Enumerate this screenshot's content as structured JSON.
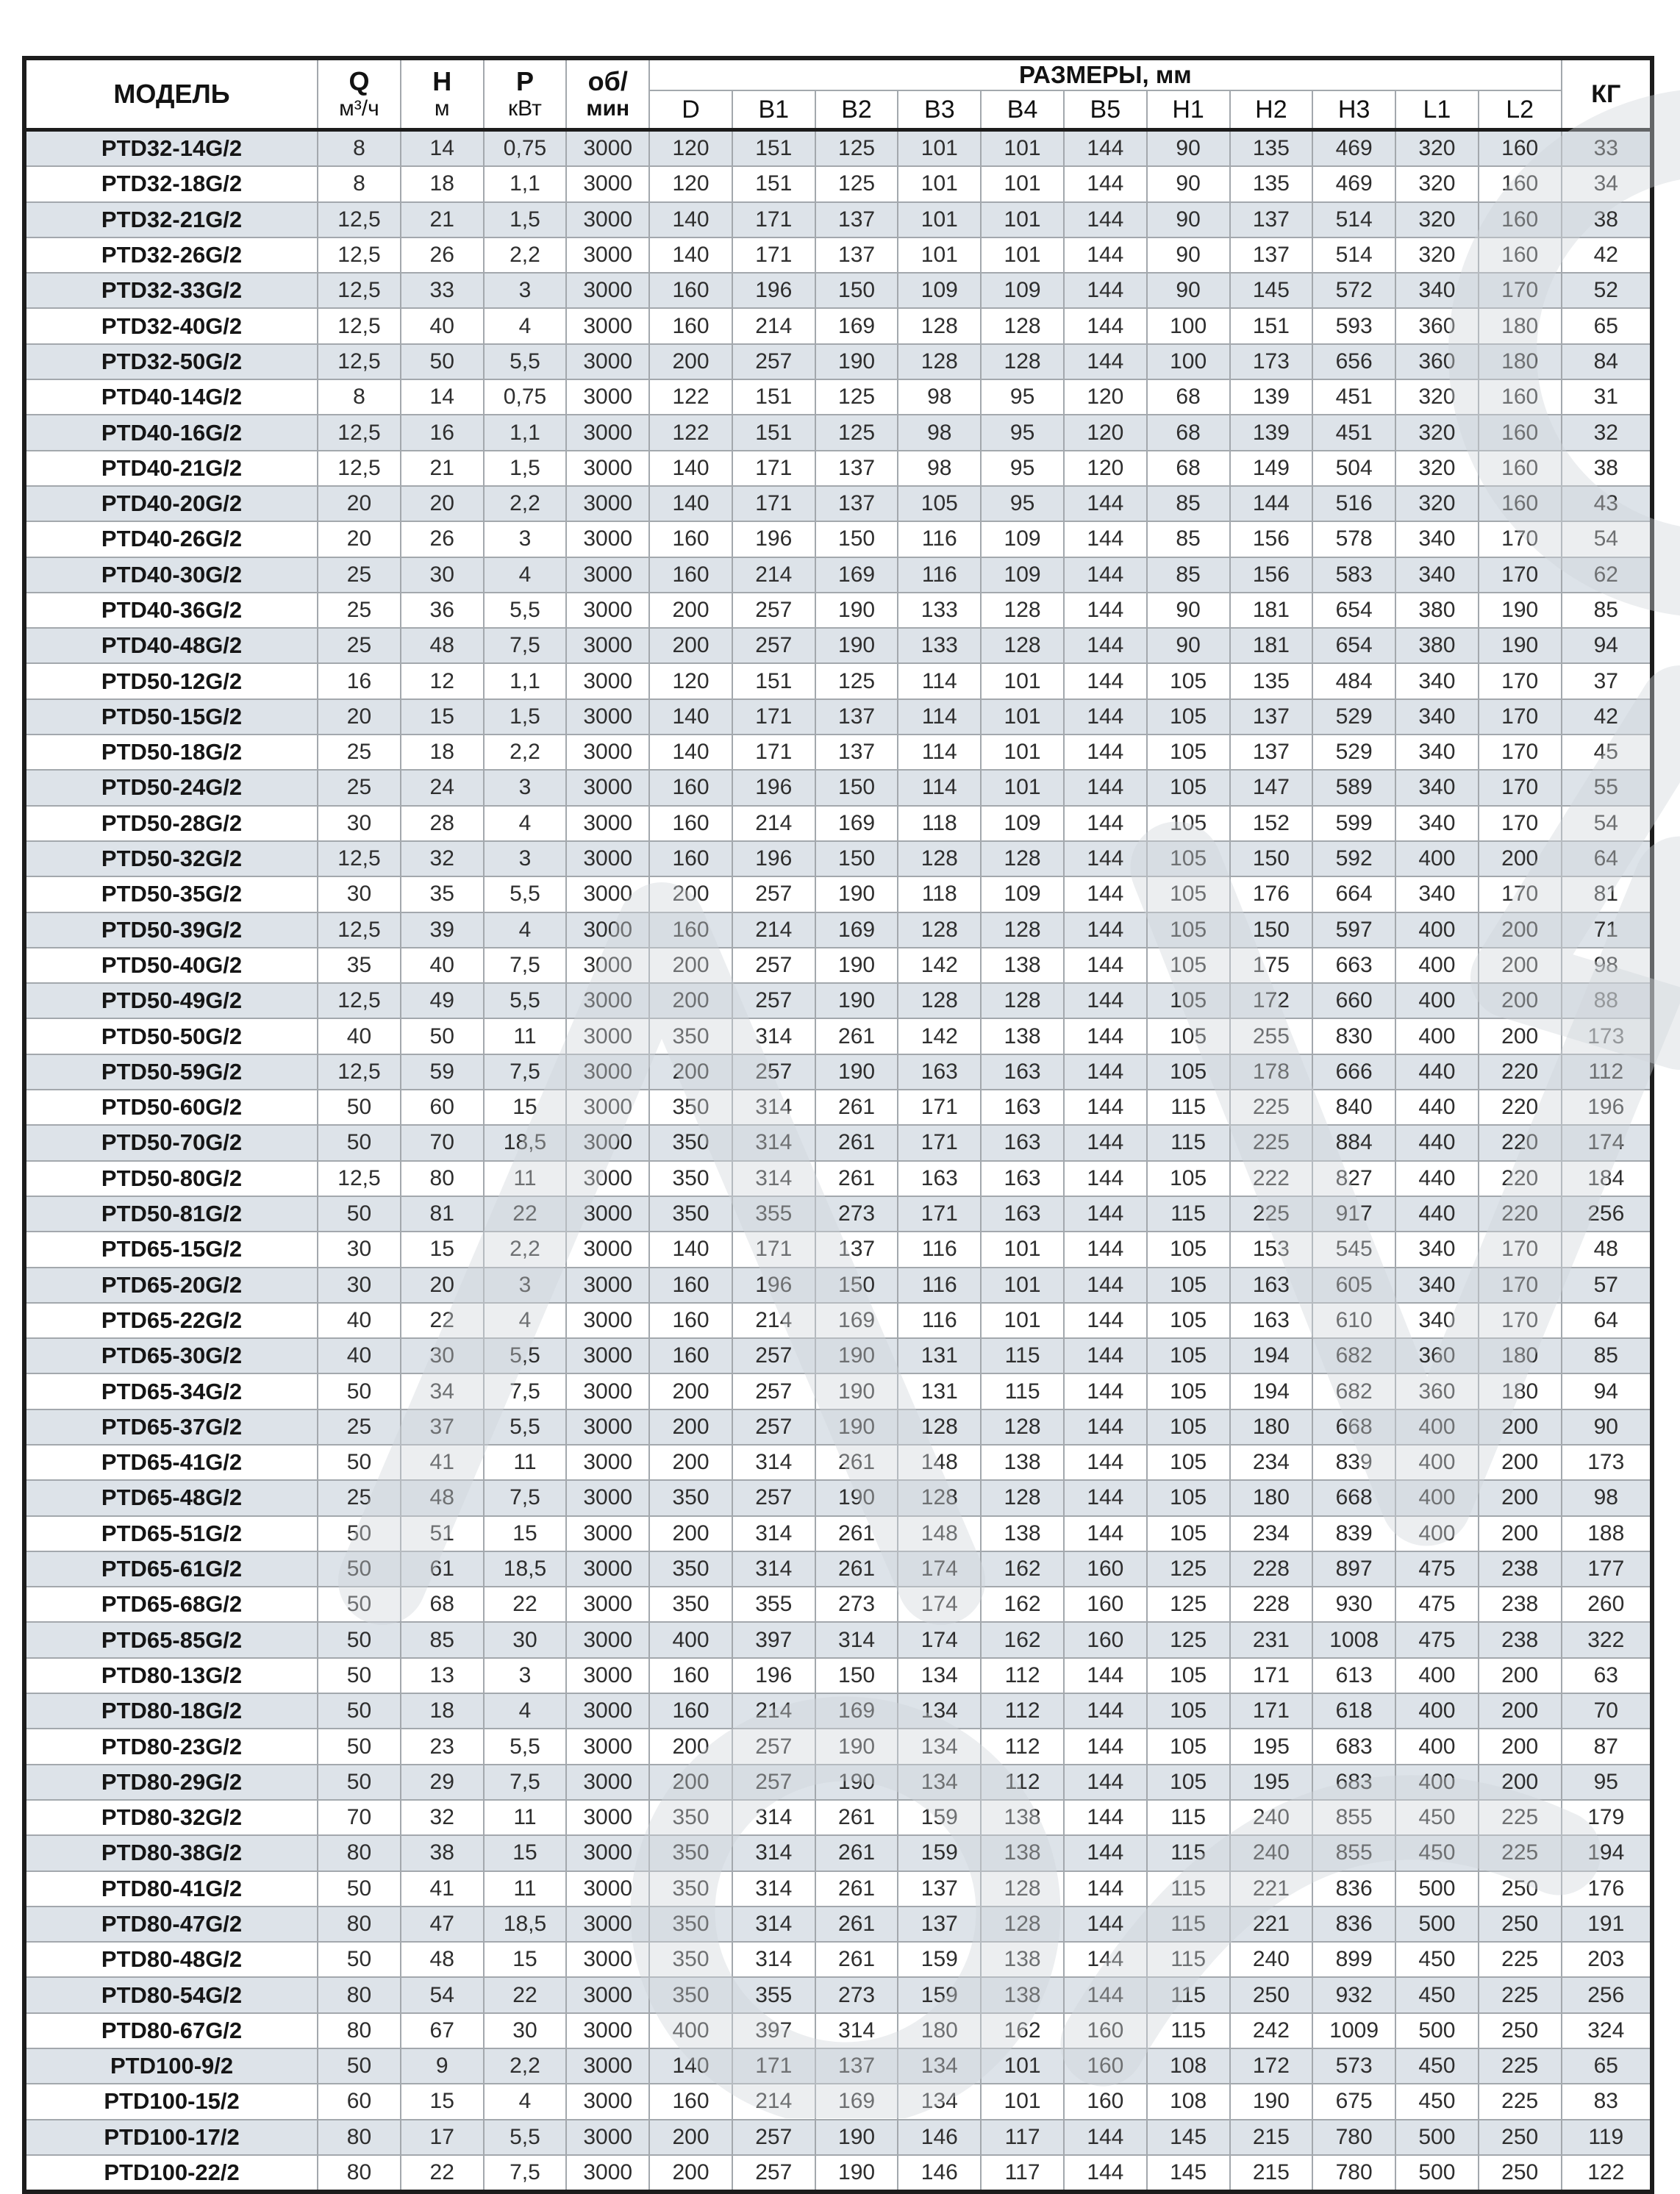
{
  "colors": {
    "row_shade": "#dde3e9",
    "grid_line": "#a3a8ad",
    "frame": "#1c1c1c",
    "watermark": "#cfd5d9"
  },
  "header": {
    "model": "МОДЕЛЬ",
    "q_label": "Q",
    "q_unit": "м³/ч",
    "h_label": "Н",
    "h_unit": "м",
    "p_label": "Р",
    "p_unit": "кВт",
    "rpm_line1": "об/",
    "rpm_line2": "мин",
    "dims_title": "РАЗМЕРЫ, мм",
    "dim_cols": [
      "D",
      "B1",
      "B2",
      "B3",
      "B4",
      "B5",
      "H1",
      "H2",
      "H3",
      "L1",
      "L2"
    ],
    "kg": "КГ"
  },
  "rows": [
    [
      "PTD32-14G/2",
      "8",
      "14",
      "0,75",
      "3000",
      "120",
      "151",
      "125",
      "101",
      "101",
      "144",
      "90",
      "135",
      "469",
      "320",
      "160",
      "33"
    ],
    [
      "PTD32-18G/2",
      "8",
      "18",
      "1,1",
      "3000",
      "120",
      "151",
      "125",
      "101",
      "101",
      "144",
      "90",
      "135",
      "469",
      "320",
      "160",
      "34"
    ],
    [
      "PTD32-21G/2",
      "12,5",
      "21",
      "1,5",
      "3000",
      "140",
      "171",
      "137",
      "101",
      "101",
      "144",
      "90",
      "137",
      "514",
      "320",
      "160",
      "38"
    ],
    [
      "PTD32-26G/2",
      "12,5",
      "26",
      "2,2",
      "3000",
      "140",
      "171",
      "137",
      "101",
      "101",
      "144",
      "90",
      "137",
      "514",
      "320",
      "160",
      "42"
    ],
    [
      "PTD32-33G/2",
      "12,5",
      "33",
      "3",
      "3000",
      "160",
      "196",
      "150",
      "109",
      "109",
      "144",
      "90",
      "145",
      "572",
      "340",
      "170",
      "52"
    ],
    [
      "PTD32-40G/2",
      "12,5",
      "40",
      "4",
      "3000",
      "160",
      "214",
      "169",
      "128",
      "128",
      "144",
      "100",
      "151",
      "593",
      "360",
      "180",
      "65"
    ],
    [
      "PTD32-50G/2",
      "12,5",
      "50",
      "5,5",
      "3000",
      "200",
      "257",
      "190",
      "128",
      "128",
      "144",
      "100",
      "173",
      "656",
      "360",
      "180",
      "84"
    ],
    [
      "PTD40-14G/2",
      "8",
      "14",
      "0,75",
      "3000",
      "122",
      "151",
      "125",
      "98",
      "95",
      "120",
      "68",
      "139",
      "451",
      "320",
      "160",
      "31"
    ],
    [
      "PTD40-16G/2",
      "12,5",
      "16",
      "1,1",
      "3000",
      "122",
      "151",
      "125",
      "98",
      "95",
      "120",
      "68",
      "139",
      "451",
      "320",
      "160",
      "32"
    ],
    [
      "PTD40-21G/2",
      "12,5",
      "21",
      "1,5",
      "3000",
      "140",
      "171",
      "137",
      "98",
      "95",
      "120",
      "68",
      "149",
      "504",
      "320",
      "160",
      "38"
    ],
    [
      "PTD40-20G/2",
      "20",
      "20",
      "2,2",
      "3000",
      "140",
      "171",
      "137",
      "105",
      "95",
      "144",
      "85",
      "144",
      "516",
      "320",
      "160",
      "43"
    ],
    [
      "PTD40-26G/2",
      "20",
      "26",
      "3",
      "3000",
      "160",
      "196",
      "150",
      "116",
      "109",
      "144",
      "85",
      "156",
      "578",
      "340",
      "170",
      "54"
    ],
    [
      "PTD40-30G/2",
      "25",
      "30",
      "4",
      "3000",
      "160",
      "214",
      "169",
      "116",
      "109",
      "144",
      "85",
      "156",
      "583",
      "340",
      "170",
      "62"
    ],
    [
      "PTD40-36G/2",
      "25",
      "36",
      "5,5",
      "3000",
      "200",
      "257",
      "190",
      "133",
      "128",
      "144",
      "90",
      "181",
      "654",
      "380",
      "190",
      "85"
    ],
    [
      "PTD40-48G/2",
      "25",
      "48",
      "7,5",
      "3000",
      "200",
      "257",
      "190",
      "133",
      "128",
      "144",
      "90",
      "181",
      "654",
      "380",
      "190",
      "94"
    ],
    [
      "PTD50-12G/2",
      "16",
      "12",
      "1,1",
      "3000",
      "120",
      "151",
      "125",
      "114",
      "101",
      "144",
      "105",
      "135",
      "484",
      "340",
      "170",
      "37"
    ],
    [
      "PTD50-15G/2",
      "20",
      "15",
      "1,5",
      "3000",
      "140",
      "171",
      "137",
      "114",
      "101",
      "144",
      "105",
      "137",
      "529",
      "340",
      "170",
      "42"
    ],
    [
      "PTD50-18G/2",
      "25",
      "18",
      "2,2",
      "3000",
      "140",
      "171",
      "137",
      "114",
      "101",
      "144",
      "105",
      "137",
      "529",
      "340",
      "170",
      "45"
    ],
    [
      "PTD50-24G/2",
      "25",
      "24",
      "3",
      "3000",
      "160",
      "196",
      "150",
      "114",
      "101",
      "144",
      "105",
      "147",
      "589",
      "340",
      "170",
      "55"
    ],
    [
      "PTD50-28G/2",
      "30",
      "28",
      "4",
      "3000",
      "160",
      "214",
      "169",
      "118",
      "109",
      "144",
      "105",
      "152",
      "599",
      "340",
      "170",
      "54"
    ],
    [
      "PTD50-32G/2",
      "12,5",
      "32",
      "3",
      "3000",
      "160",
      "196",
      "150",
      "128",
      "128",
      "144",
      "105",
      "150",
      "592",
      "400",
      "200",
      "64"
    ],
    [
      "PTD50-35G/2",
      "30",
      "35",
      "5,5",
      "3000",
      "200",
      "257",
      "190",
      "118",
      "109",
      "144",
      "105",
      "176",
      "664",
      "340",
      "170",
      "81"
    ],
    [
      "PTD50-39G/2",
      "12,5",
      "39",
      "4",
      "3000",
      "160",
      "214",
      "169",
      "128",
      "128",
      "144",
      "105",
      "150",
      "597",
      "400",
      "200",
      "71"
    ],
    [
      "PTD50-40G/2",
      "35",
      "40",
      "7,5",
      "3000",
      "200",
      "257",
      "190",
      "142",
      "138",
      "144",
      "105",
      "175",
      "663",
      "400",
      "200",
      "98"
    ],
    [
      "PTD50-49G/2",
      "12,5",
      "49",
      "5,5",
      "3000",
      "200",
      "257",
      "190",
      "128",
      "128",
      "144",
      "105",
      "172",
      "660",
      "400",
      "200",
      "88"
    ],
    [
      "PTD50-50G/2",
      "40",
      "50",
      "11",
      "3000",
      "350",
      "314",
      "261",
      "142",
      "138",
      "144",
      "105",
      "255",
      "830",
      "400",
      "200",
      "173"
    ],
    [
      "PTD50-59G/2",
      "12,5",
      "59",
      "7,5",
      "3000",
      "200",
      "257",
      "190",
      "163",
      "163",
      "144",
      "105",
      "178",
      "666",
      "440",
      "220",
      "112"
    ],
    [
      "PTD50-60G/2",
      "50",
      "60",
      "15",
      "3000",
      "350",
      "314",
      "261",
      "171",
      "163",
      "144",
      "115",
      "225",
      "840",
      "440",
      "220",
      "196"
    ],
    [
      "PTD50-70G/2",
      "50",
      "70",
      "18,5",
      "3000",
      "350",
      "314",
      "261",
      "171",
      "163",
      "144",
      "115",
      "225",
      "884",
      "440",
      "220",
      "174"
    ],
    [
      "PTD50-80G/2",
      "12,5",
      "80",
      "11",
      "3000",
      "350",
      "314",
      "261",
      "163",
      "163",
      "144",
      "105",
      "222",
      "827",
      "440",
      "220",
      "184"
    ],
    [
      "PTD50-81G/2",
      "50",
      "81",
      "22",
      "3000",
      "350",
      "355",
      "273",
      "171",
      "163",
      "144",
      "115",
      "225",
      "917",
      "440",
      "220",
      "256"
    ],
    [
      "PTD65-15G/2",
      "30",
      "15",
      "2,2",
      "3000",
      "140",
      "171",
      "137",
      "116",
      "101",
      "144",
      "105",
      "153",
      "545",
      "340",
      "170",
      "48"
    ],
    [
      "PTD65-20G/2",
      "30",
      "20",
      "3",
      "3000",
      "160",
      "196",
      "150",
      "116",
      "101",
      "144",
      "105",
      "163",
      "605",
      "340",
      "170",
      "57"
    ],
    [
      "PTD65-22G/2",
      "40",
      "22",
      "4",
      "3000",
      "160",
      "214",
      "169",
      "116",
      "101",
      "144",
      "105",
      "163",
      "610",
      "340",
      "170",
      "64"
    ],
    [
      "PTD65-30G/2",
      "40",
      "30",
      "5,5",
      "3000",
      "160",
      "257",
      "190",
      "131",
      "115",
      "144",
      "105",
      "194",
      "682",
      "360",
      "180",
      "85"
    ],
    [
      "PTD65-34G/2",
      "50",
      "34",
      "7,5",
      "3000",
      "200",
      "257",
      "190",
      "131",
      "115",
      "144",
      "105",
      "194",
      "682",
      "360",
      "180",
      "94"
    ],
    [
      "PTD65-37G/2",
      "25",
      "37",
      "5,5",
      "3000",
      "200",
      "257",
      "190",
      "128",
      "128",
      "144",
      "105",
      "180",
      "668",
      "400",
      "200",
      "90"
    ],
    [
      "PTD65-41G/2",
      "50",
      "41",
      "11",
      "3000",
      "200",
      "314",
      "261",
      "148",
      "138",
      "144",
      "105",
      "234",
      "839",
      "400",
      "200",
      "173"
    ],
    [
      "PTD65-48G/2",
      "25",
      "48",
      "7,5",
      "3000",
      "350",
      "257",
      "190",
      "128",
      "128",
      "144",
      "105",
      "180",
      "668",
      "400",
      "200",
      "98"
    ],
    [
      "PTD65-51G/2",
      "50",
      "51",
      "15",
      "3000",
      "200",
      "314",
      "261",
      "148",
      "138",
      "144",
      "105",
      "234",
      "839",
      "400",
      "200",
      "188"
    ],
    [
      "PTD65-61G/2",
      "50",
      "61",
      "18,5",
      "3000",
      "350",
      "314",
      "261",
      "174",
      "162",
      "160",
      "125",
      "228",
      "897",
      "475",
      "238",
      "177"
    ],
    [
      "PTD65-68G/2",
      "50",
      "68",
      "22",
      "3000",
      "350",
      "355",
      "273",
      "174",
      "162",
      "160",
      "125",
      "228",
      "930",
      "475",
      "238",
      "260"
    ],
    [
      "PTD65-85G/2",
      "50",
      "85",
      "30",
      "3000",
      "400",
      "397",
      "314",
      "174",
      "162",
      "160",
      "125",
      "231",
      "1008",
      "475",
      "238",
      "322"
    ],
    [
      "PTD80-13G/2",
      "50",
      "13",
      "3",
      "3000",
      "160",
      "196",
      "150",
      "134",
      "112",
      "144",
      "105",
      "171",
      "613",
      "400",
      "200",
      "63"
    ],
    [
      "PTD80-18G/2",
      "50",
      "18",
      "4",
      "3000",
      "160",
      "214",
      "169",
      "134",
      "112",
      "144",
      "105",
      "171",
      "618",
      "400",
      "200",
      "70"
    ],
    [
      "PTD80-23G/2",
      "50",
      "23",
      "5,5",
      "3000",
      "200",
      "257",
      "190",
      "134",
      "112",
      "144",
      "105",
      "195",
      "683",
      "400",
      "200",
      "87"
    ],
    [
      "PTD80-29G/2",
      "50",
      "29",
      "7,5",
      "3000",
      "200",
      "257",
      "190",
      "134",
      "112",
      "144",
      "105",
      "195",
      "683",
      "400",
      "200",
      "95"
    ],
    [
      "PTD80-32G/2",
      "70",
      "32",
      "11",
      "3000",
      "350",
      "314",
      "261",
      "159",
      "138",
      "144",
      "115",
      "240",
      "855",
      "450",
      "225",
      "179"
    ],
    [
      "PTD80-38G/2",
      "80",
      "38",
      "15",
      "3000",
      "350",
      "314",
      "261",
      "159",
      "138",
      "144",
      "115",
      "240",
      "855",
      "450",
      "225",
      "194"
    ],
    [
      "PTD80-41G/2",
      "50",
      "41",
      "11",
      "3000",
      "350",
      "314",
      "261",
      "137",
      "128",
      "144",
      "115",
      "221",
      "836",
      "500",
      "250",
      "176"
    ],
    [
      "PTD80-47G/2",
      "80",
      "47",
      "18,5",
      "3000",
      "350",
      "314",
      "261",
      "137",
      "128",
      "144",
      "115",
      "221",
      "836",
      "500",
      "250",
      "191"
    ],
    [
      "PTD80-48G/2",
      "50",
      "48",
      "15",
      "3000",
      "350",
      "314",
      "261",
      "159",
      "138",
      "144",
      "115",
      "240",
      "899",
      "450",
      "225",
      "203"
    ],
    [
      "PTD80-54G/2",
      "80",
      "54",
      "22",
      "3000",
      "350",
      "355",
      "273",
      "159",
      "138",
      "144",
      "115",
      "250",
      "932",
      "450",
      "225",
      "256"
    ],
    [
      "PTD80-67G/2",
      "80",
      "67",
      "30",
      "3000",
      "400",
      "397",
      "314",
      "180",
      "162",
      "160",
      "115",
      "242",
      "1009",
      "500",
      "250",
      "324"
    ],
    [
      "PTD100-9/2",
      "50",
      "9",
      "2,2",
      "3000",
      "140",
      "171",
      "137",
      "134",
      "101",
      "160",
      "108",
      "172",
      "573",
      "450",
      "225",
      "65"
    ],
    [
      "PTD100-15/2",
      "60",
      "15",
      "4",
      "3000",
      "160",
      "214",
      "169",
      "134",
      "101",
      "160",
      "108",
      "190",
      "675",
      "450",
      "225",
      "83"
    ],
    [
      "PTD100-17/2",
      "80",
      "17",
      "5,5",
      "3000",
      "200",
      "257",
      "190",
      "146",
      "117",
      "144",
      "145",
      "215",
      "780",
      "500",
      "250",
      "119"
    ],
    [
      "PTD100-22/2",
      "80",
      "22",
      "7,5",
      "3000",
      "200",
      "257",
      "190",
      "146",
      "117",
      "144",
      "145",
      "215",
      "780",
      "500",
      "250",
      "122"
    ]
  ]
}
